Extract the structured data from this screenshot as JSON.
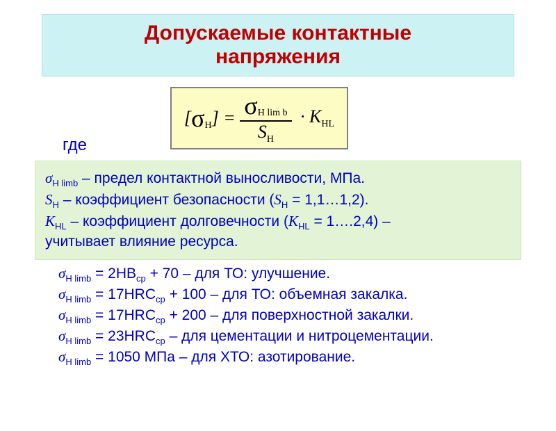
{
  "title": {
    "line1": "Допускаемые контактные",
    "line2": "напряжения"
  },
  "formula": {
    "lhs_open": "[",
    "lhs_sigma": "σ",
    "lhs_sub": "H",
    "lhs_close": "] =",
    "num_sigma": "σ",
    "num_sub": "H lim b",
    "den_S": "S",
    "den_sub": "H",
    "dot": "·",
    "k": "K",
    "k_sub": "HL"
  },
  "gde": "где",
  "desc": {
    "l1a": "σ",
    "l1sub": "H limb",
    "l1b": " – предел контактной выносливости, МПа.",
    "l2a": "S",
    "l2sub": "H",
    "l2b": " – коэффициент безопасности (",
    "l2c": "S",
    "l2sub2": "H",
    "l2d": " = 1,1…1,2).",
    "l3a": "K",
    "l3sub": "HL",
    "l3b": " – коэффициент долговечности (",
    "l3c": "K",
    "l3sub2": "HL",
    "l3d": " = 1….2,4) –",
    "l4": "учитывает влияние ресурса."
  },
  "limb": {
    "r1a": "σ",
    "r1sub": "H limb",
    "r1eq": " = 2HB",
    "r1sub2": "ср",
    "r1b": " + 70 – для ТО: улучшение.",
    "r2a": "σ",
    "r2sub": "H limb",
    "r2eq": " = 17HRC",
    "r2sub2": "ср",
    "r2b": "  + 100 – для ТО: объемная закалка.",
    "r3a": "σ",
    "r3sub": "H limb",
    "r3eq": " = 17HRC",
    "r3sub2": "ср",
    "r3b": "  + 200 – для поверхностной закалки.",
    "r4a": "σ",
    "r4sub": "H limb",
    "r4eq": " = 23HRC",
    "r4sub2": "ср",
    "r4b": " – для цементации и нитроцементации.",
    "r5a": "σ",
    "r5sub": "H limb",
    "r5eq": " = 1050 МПа – для ХТО: азотирование."
  }
}
